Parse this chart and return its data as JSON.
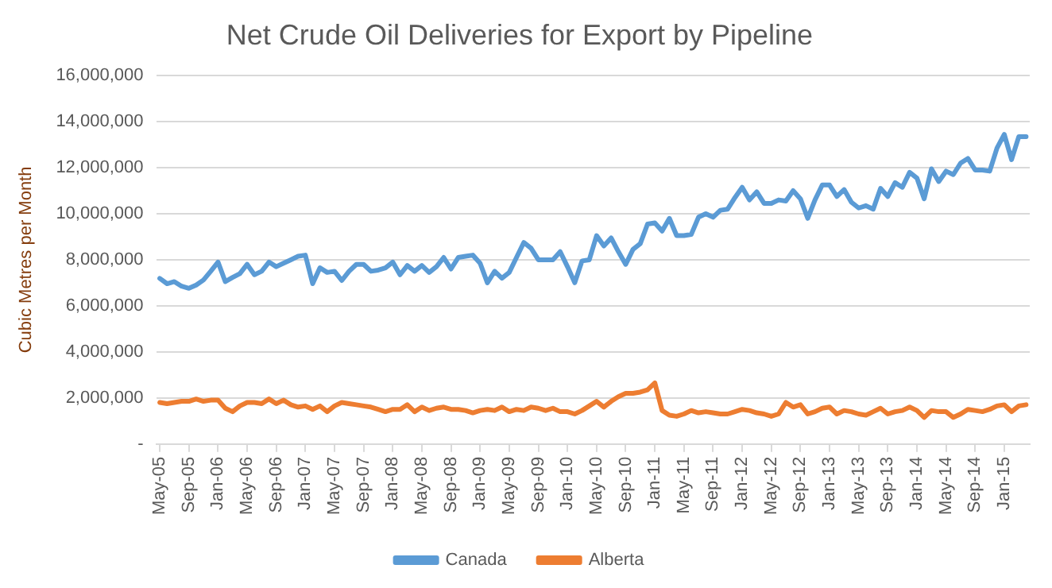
{
  "chart_data": {
    "type": "line",
    "title": "Net Crude Oil Deliveries for Export by Pipeline",
    "ylabel": "Cubic Metres per Month",
    "categories": [
      "May-05",
      null,
      null,
      null,
      "Sep-05",
      null,
      null,
      null,
      "Jan-06",
      null,
      null,
      null,
      "May-06",
      null,
      null,
      null,
      "Sep-06",
      null,
      null,
      null,
      "Jan-07",
      null,
      null,
      null,
      "May-07",
      null,
      null,
      null,
      "Sep-07",
      null,
      null,
      null,
      "Jan-08",
      null,
      null,
      null,
      "May-08",
      null,
      null,
      null,
      "Sep-08",
      null,
      null,
      null,
      "Jan-09",
      null,
      null,
      null,
      "May-09",
      null,
      null,
      null,
      "Sep-09",
      null,
      null,
      null,
      "Jan-10",
      null,
      null,
      null,
      "May-10",
      null,
      null,
      null,
      "Sep-10",
      null,
      null,
      null,
      "Jan-11",
      null,
      null,
      null,
      "May-11",
      null,
      null,
      null,
      "Sep-11",
      null,
      null,
      null,
      "Jan-12",
      null,
      null,
      null,
      "May-12",
      null,
      null,
      null,
      "Sep-12",
      null,
      null,
      null,
      "Jan-13",
      null,
      null,
      null,
      "May-13",
      null,
      null,
      null,
      "Sep-13",
      null,
      null,
      null,
      "Jan-14",
      null,
      null,
      null,
      "May-14",
      null,
      null,
      null,
      "Sep-14",
      null,
      null,
      null,
      "Jan-15",
      null,
      null,
      null
    ],
    "series": [
      {
        "name": "Canada",
        "color": "#5b9bd5",
        "values": [
          7190000,
          6960000,
          7050000,
          6850000,
          6760000,
          6900000,
          7120000,
          7500000,
          7900000,
          7050000,
          7230000,
          7400000,
          7800000,
          7350000,
          7500000,
          7900000,
          7700000,
          7850000,
          8000000,
          8150000,
          8200000,
          6960000,
          7650000,
          7450000,
          7500000,
          7100000,
          7500000,
          7800000,
          7800000,
          7500000,
          7550000,
          7650000,
          7900000,
          7350000,
          7750000,
          7500000,
          7750000,
          7450000,
          7700000,
          8100000,
          7600000,
          8100000,
          8150000,
          8200000,
          7850000,
          7000000,
          7500000,
          7200000,
          7450000,
          8100000,
          8750000,
          8500000,
          8000000,
          8000000,
          8000000,
          8350000,
          7700000,
          7000000,
          7950000,
          8000000,
          9050000,
          8600000,
          8950000,
          8350000,
          7800000,
          8450000,
          8700000,
          9550000,
          9600000,
          9250000,
          9800000,
          9050000,
          9050000,
          9100000,
          9850000,
          10000000,
          9850000,
          10150000,
          10200000,
          10700000,
          11150000,
          10600000,
          10950000,
          10450000,
          10450000,
          10600000,
          10550000,
          11000000,
          10650000,
          9800000,
          10600000,
          11250000,
          11250000,
          10750000,
          11050000,
          10500000,
          10250000,
          10350000,
          10200000,
          11100000,
          10750000,
          11350000,
          11150000,
          11800000,
          11550000,
          10650000,
          11950000,
          11400000,
          11850000,
          11700000,
          12200000,
          12400000,
          11900000,
          11900000,
          11850000,
          12850000,
          13450000,
          12350000,
          13350000,
          13350000
        ]
      },
      {
        "name": "Alberta",
        "color": "#ed7d31",
        "values": [
          1800000,
          1750000,
          1800000,
          1850000,
          1850000,
          1950000,
          1850000,
          1900000,
          1900000,
          1550000,
          1400000,
          1650000,
          1800000,
          1800000,
          1750000,
          1950000,
          1750000,
          1900000,
          1700000,
          1600000,
          1650000,
          1500000,
          1650000,
          1400000,
          1650000,
          1800000,
          1750000,
          1700000,
          1650000,
          1600000,
          1500000,
          1400000,
          1500000,
          1500000,
          1700000,
          1400000,
          1600000,
          1450000,
          1550000,
          1600000,
          1500000,
          1500000,
          1450000,
          1350000,
          1450000,
          1500000,
          1450000,
          1600000,
          1400000,
          1500000,
          1450000,
          1600000,
          1550000,
          1450000,
          1550000,
          1400000,
          1400000,
          1300000,
          1450000,
          1650000,
          1850000,
          1600000,
          1850000,
          2050000,
          2200000,
          2200000,
          2250000,
          2350000,
          2650000,
          1450000,
          1250000,
          1200000,
          1300000,
          1450000,
          1350000,
          1400000,
          1350000,
          1300000,
          1300000,
          1400000,
          1500000,
          1450000,
          1350000,
          1300000,
          1200000,
          1300000,
          1800000,
          1600000,
          1700000,
          1300000,
          1400000,
          1550000,
          1600000,
          1300000,
          1450000,
          1400000,
          1300000,
          1250000,
          1400000,
          1550000,
          1300000,
          1400000,
          1450000,
          1600000,
          1450000,
          1150000,
          1450000,
          1400000,
          1400000,
          1150000,
          1300000,
          1500000,
          1450000,
          1400000,
          1500000,
          1650000,
          1700000,
          1400000,
          1650000,
          1700000
        ]
      }
    ],
    "ylim": [
      0,
      16000000
    ],
    "yticks": [
      {
        "value": 0,
        "label": "-"
      },
      {
        "value": 2000000,
        "label": "2,000,000"
      },
      {
        "value": 4000000,
        "label": "4,000,000"
      },
      {
        "value": 6000000,
        "label": "6,000,000"
      },
      {
        "value": 8000000,
        "label": "8,000,000"
      },
      {
        "value": 10000000,
        "label": "10,000,000"
      },
      {
        "value": 12000000,
        "label": "12,000,000"
      },
      {
        "value": 14000000,
        "label": "14,000,000"
      },
      {
        "value": 16000000,
        "label": "16,000,000"
      }
    ],
    "grid": "y",
    "legend": "bottom",
    "marker": "none",
    "line_style": "solid"
  }
}
